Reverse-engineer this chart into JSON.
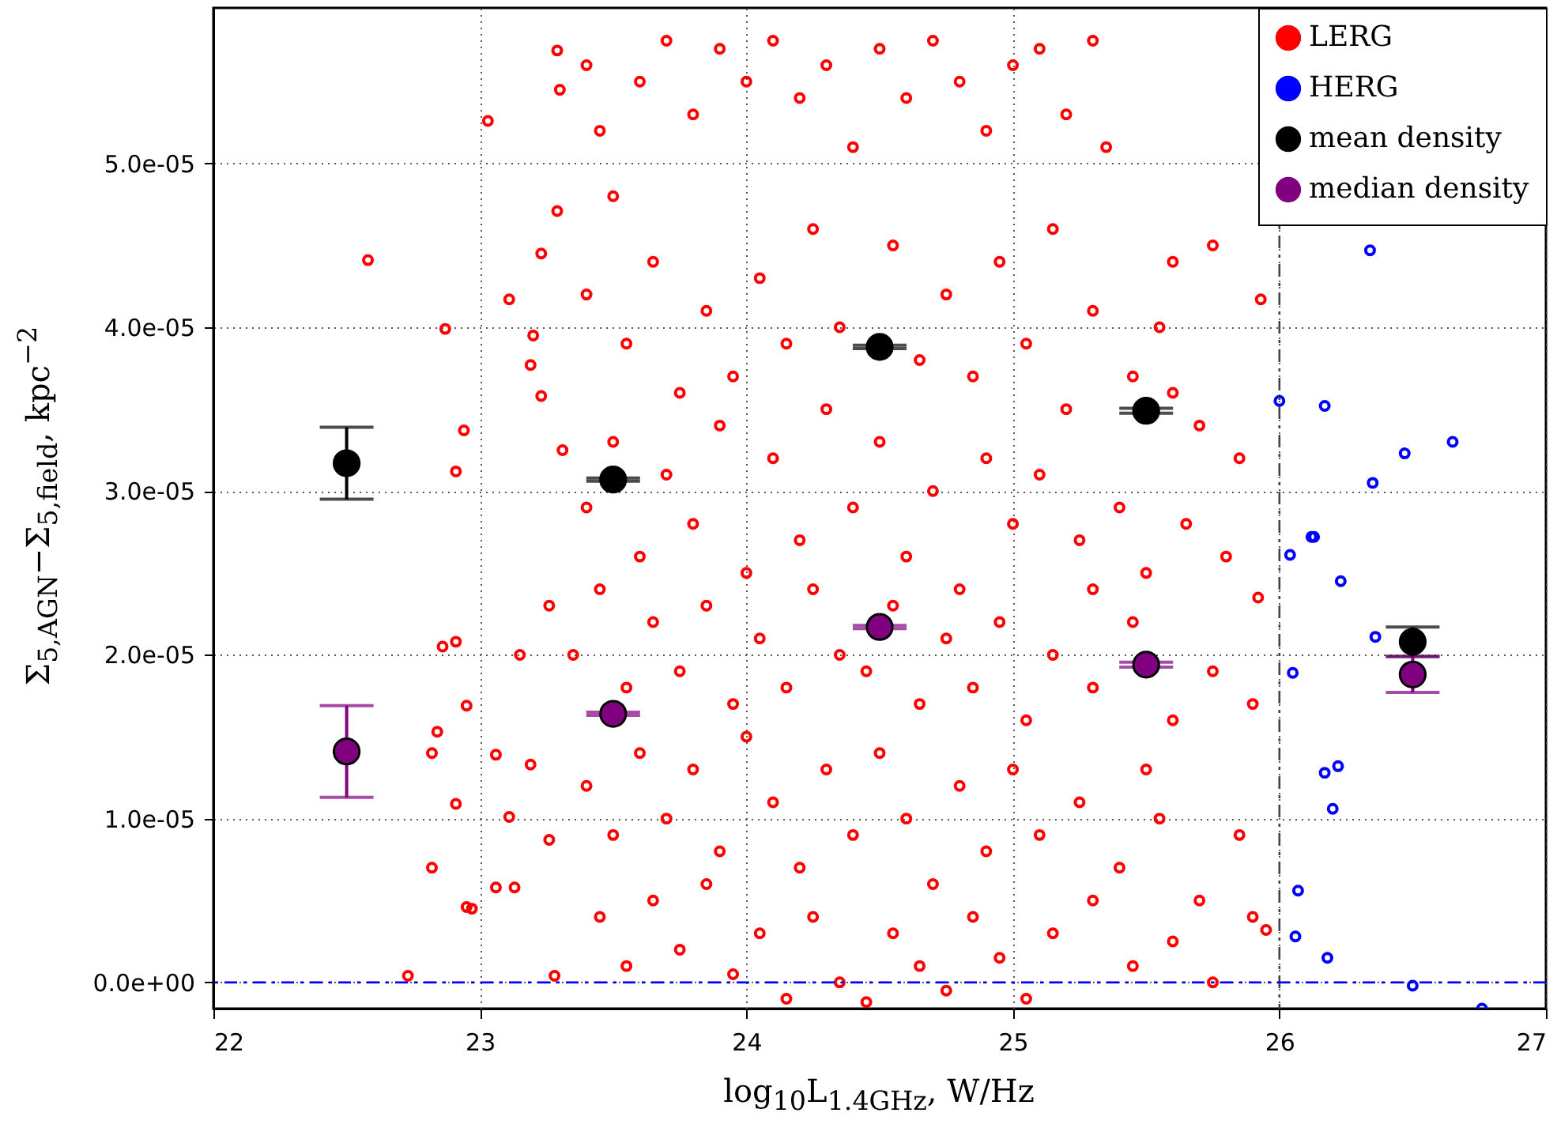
{
  "chart_data": {
    "type": "scatter",
    "xlabel": "log$_{10}$L$_{1.4GHz}$, W/Hz",
    "ylabel": "Σ$_{5,AGN}$−Σ$_{5,field}$, kpc$^{−2}$",
    "xlim": [
      22,
      27
    ],
    "ylim": [
      -1.6e-06,
      5.95e-05
    ],
    "xticks": [
      22,
      23,
      24,
      25,
      26,
      27
    ],
    "yticks": [
      {
        "value": 0,
        "label": "0.0e+00"
      },
      {
        "value": 1e-05,
        "label": "1.0e-05"
      },
      {
        "value": 2e-05,
        "label": "2.0e-05"
      },
      {
        "value": 3e-05,
        "label": "3.0e-05"
      },
      {
        "value": 4e-05,
        "label": "4.0e-05"
      },
      {
        "value": 5e-05,
        "label": "5.0e-05"
      }
    ],
    "grid": true,
    "legend": "top right",
    "marker": "circle",
    "ref_lines": [
      {
        "axis": "x",
        "value": 26,
        "color": "#444444",
        "line_style": "dashed"
      },
      {
        "axis": "y",
        "value": 0,
        "color": "#0000ff",
        "line_style": "dashed"
      }
    ],
    "series": [
      {
        "name": "LERG",
        "color": "#ff0000",
        "x": [
          22.58,
          23.03,
          22.87,
          22.94,
          22.91,
          22.86,
          22.91,
          22.95,
          22.84,
          22.82,
          22.91,
          22.82,
          22.95,
          22.97,
          22.73,
          23.06,
          23.11,
          23.06,
          23.13,
          23.11,
          23.15,
          23.2,
          23.19,
          23.23,
          23.23,
          23.29,
          23.29,
          23.3,
          23.31,
          23.26,
          23.19,
          23.26,
          23.28,
          23.4,
          23.45,
          23.5,
          23.6,
          23.7,
          23.8,
          23.9,
          24.0,
          24.1,
          24.2,
          24.3,
          24.4,
          24.5,
          24.6,
          24.7,
          24.8,
          24.9,
          25.0,
          25.1,
          25.2,
          25.3,
          25.35,
          25.6,
          25.75,
          25.93,
          23.4,
          23.55,
          23.65,
          23.75,
          23.85,
          23.95,
          24.05,
          24.15,
          24.25,
          24.35,
          24.55,
          24.65,
          24.75,
          24.85,
          24.95,
          25.05,
          25.15,
          25.2,
          25.3,
          25.45,
          25.6,
          25.7,
          25.85,
          25.55,
          23.4,
          23.5,
          23.6,
          23.7,
          23.8,
          23.9,
          24.0,
          24.1,
          24.2,
          24.3,
          24.4,
          24.5,
          24.6,
          24.7,
          24.8,
          24.9,
          25.0,
          25.1,
          25.25,
          25.4,
          25.5,
          25.65,
          25.8,
          25.92,
          25.3,
          23.35,
          23.45,
          23.55,
          23.65,
          23.75,
          23.85,
          23.95,
          24.05,
          24.15,
          24.25,
          24.35,
          24.45,
          24.55,
          24.65,
          24.75,
          24.85,
          24.95,
          25.05,
          25.15,
          25.3,
          25.45,
          25.6,
          25.75,
          25.9,
          25.5,
          23.4,
          23.5,
          23.6,
          23.7,
          23.8,
          23.9,
          24.0,
          24.1,
          24.2,
          24.3,
          24.4,
          24.5,
          24.6,
          24.7,
          24.8,
          24.9,
          25.0,
          25.1,
          25.25,
          25.4,
          25.55,
          25.7,
          25.85,
          25.95,
          23.45,
          23.55,
          23.65,
          23.75,
          23.85,
          23.95,
          24.05,
          24.15,
          24.25,
          24.35,
          24.45,
          24.55,
          24.65,
          24.75,
          24.85,
          24.95,
          25.05,
          25.15,
          25.3,
          25.45,
          25.6,
          25.75,
          25.9
        ],
        "values": [
          4.41e-05,
          5.26e-05,
          3.99e-05,
          3.37e-05,
          3.12e-05,
          2.05e-05,
          2.08e-05,
          1.69e-05,
          1.53e-05,
          1.4e-05,
          1.09e-05,
          7e-06,
          4.6e-06,
          4.5e-06,
          4e-07,
          1.39e-05,
          4.17e-05,
          5.8e-06,
          5.8e-06,
          1.01e-05,
          2e-05,
          3.95e-05,
          3.77e-05,
          3.58e-05,
          4.45e-05,
          4.71e-05,
          5.69e-05,
          5.45e-05,
          3.25e-05,
          2.3e-05,
          1.33e-05,
          8.7e-06,
          4e-07,
          5.6e-05,
          5.2e-05,
          4.8e-05,
          5.5e-05,
          5.75e-05,
          5.3e-05,
          5.7e-05,
          5.5e-05,
          5.75e-05,
          5.4e-05,
          5.6e-05,
          5.1e-05,
          5.7e-05,
          5.4e-05,
          5.75e-05,
          5.5e-05,
          5.2e-05,
          5.6e-05,
          5.7e-05,
          5.3e-05,
          5.75e-05,
          5.1e-05,
          4.4e-05,
          4.5e-05,
          4.17e-05,
          4.2e-05,
          3.9e-05,
          4.4e-05,
          3.6e-05,
          4.1e-05,
          3.7e-05,
          4.3e-05,
          3.9e-05,
          4.6e-05,
          4e-05,
          4.5e-05,
          3.8e-05,
          4.2e-05,
          3.7e-05,
          4.4e-05,
          3.9e-05,
          4.6e-05,
          3.5e-05,
          4.1e-05,
          3.7e-05,
          3.6e-05,
          3.4e-05,
          3.2e-05,
          4e-05,
          2.9e-05,
          3.3e-05,
          2.6e-05,
          3.1e-05,
          2.8e-05,
          3.4e-05,
          2.5e-05,
          3.2e-05,
          2.7e-05,
          3.5e-05,
          2.9e-05,
          3.3e-05,
          2.6e-05,
          3e-05,
          2.4e-05,
          3.2e-05,
          2.8e-05,
          3.1e-05,
          2.7e-05,
          2.9e-05,
          2.5e-05,
          2.8e-05,
          2.6e-05,
          2.35e-05,
          2.4e-05,
          2e-05,
          2.4e-05,
          1.8e-05,
          2.2e-05,
          1.9e-05,
          2.3e-05,
          1.7e-05,
          2.1e-05,
          1.8e-05,
          2.4e-05,
          2e-05,
          1.9e-05,
          2.3e-05,
          1.7e-05,
          2.1e-05,
          1.8e-05,
          2.2e-05,
          1.6e-05,
          2e-05,
          1.8e-05,
          2.2e-05,
          1.6e-05,
          1.9e-05,
          1.7e-05,
          1.3e-05,
          1.2e-05,
          9e-06,
          1.4e-05,
          1e-05,
          1.3e-05,
          8e-06,
          1.5e-05,
          1.1e-05,
          7e-06,
          1.3e-05,
          9e-06,
          1.4e-05,
          1e-05,
          6e-06,
          1.2e-05,
          8e-06,
          1.3e-05,
          9e-06,
          1.1e-05,
          7e-06,
          1e-05,
          5e-06,
          9e-06,
          3.2e-06,
          4e-06,
          1e-06,
          5e-06,
          2e-06,
          6e-06,
          5e-07,
          3e-06,
          -1e-06,
          4e-06,
          0,
          -1.2e-06,
          3e-06,
          1e-06,
          -5e-07,
          4e-06,
          1.5e-06,
          -1e-06,
          3e-06,
          5e-06,
          1e-06,
          2.5e-06,
          0,
          4e-06
        ]
      },
      {
        "name": "HERG",
        "color": "#0000ff",
        "x": [
          26.0,
          26.17,
          26.47,
          26.65,
          26.35,
          26.04,
          26.12,
          26.13,
          26.23,
          26.36,
          26.05,
          26.17,
          26.22,
          26.2,
          26.07,
          26.06,
          26.18,
          26.5,
          26.76,
          26.34
        ],
        "values": [
          3.55e-05,
          3.52e-05,
          3.23e-05,
          3.3e-05,
          3.05e-05,
          2.61e-05,
          2.72e-05,
          2.72e-05,
          2.45e-05,
          2.11e-05,
          1.89e-05,
          1.28e-05,
          1.32e-05,
          1.06e-05,
          5.6e-06,
          2.8e-06,
          1.5e-06,
          -2e-07,
          -1.6e-06,
          4.47e-05
        ]
      },
      {
        "name": "mean density",
        "color": "#000000",
        "x": [
          22.5,
          23.5,
          24.5,
          25.5,
          26.5
        ],
        "values": [
          3.17e-05,
          3.07e-05,
          3.88e-05,
          3.49e-05,
          2.08e-05
        ],
        "errors": [
          2.2e-06,
          1e-07,
          1e-07,
          1.5e-07,
          9e-07
        ]
      },
      {
        "name": "median density",
        "color": "#800080",
        "x": [
          22.5,
          23.5,
          24.5,
          25.5,
          26.5
        ],
        "values": [
          1.41e-05,
          1.64e-05,
          2.17e-05,
          1.94e-05,
          1.88e-05
        ],
        "errors": [
          2.8e-06,
          1e-07,
          1e-07,
          1.5e-07,
          1.1e-06
        ]
      }
    ]
  }
}
